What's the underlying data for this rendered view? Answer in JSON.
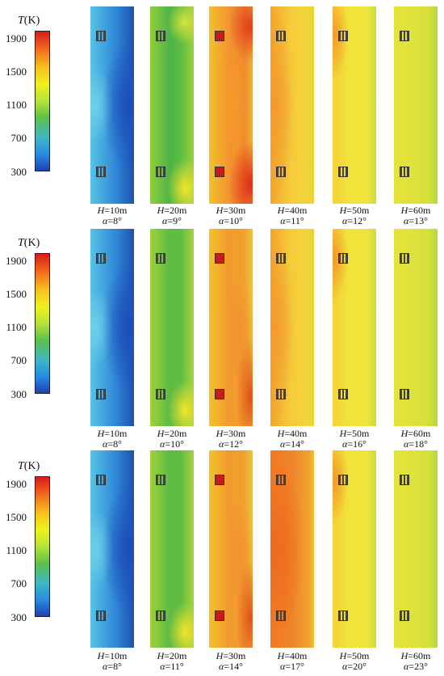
{
  "colorbar": {
    "title_var": "T",
    "title_unit": "(K)",
    "ticks": [
      "1900",
      "1500",
      "1100",
      "700",
      "300"
    ]
  },
  "rows": [
    {
      "captions": [
        {
          "h": "H",
          "h_val": "=10m",
          "a": "α",
          "a_val": "=8°"
        },
        {
          "h": "H",
          "h_val": "=20m",
          "a": "α",
          "a_val": "=9°"
        },
        {
          "h": "H",
          "h_val": "=30m",
          "a": "α",
          "a_val": "=10°"
        },
        {
          "h": "H",
          "h_val": "=40m",
          "a": "α",
          "a_val": "=11°"
        },
        {
          "h": "H",
          "h_val": "=50m",
          "a": "α",
          "a_val": "=12°"
        },
        {
          "h": "H",
          "h_val": "=60m",
          "a": "α",
          "a_val": "=13°"
        }
      ]
    },
    {
      "captions": [
        {
          "h": "H",
          "h_val": "=10m",
          "a": "α",
          "a_val": "=8°"
        },
        {
          "h": "H",
          "h_val": "=20m",
          "a": "α",
          "a_val": "=10°"
        },
        {
          "h": "H",
          "h_val": "=30m",
          "a": "α",
          "a_val": "=12°"
        },
        {
          "h": "H",
          "h_val": "=40m",
          "a": "α",
          "a_val": "=14°"
        },
        {
          "h": "H",
          "h_val": "=50m",
          "a": "α",
          "a_val": "=16°"
        },
        {
          "h": "H",
          "h_val": "=60m",
          "a": "α",
          "a_val": "=18°"
        }
      ]
    },
    {
      "captions": [
        {
          "h": "H",
          "h_val": "=10m",
          "a": "α",
          "a_val": "=8°"
        },
        {
          "h": "H",
          "h_val": "=20m",
          "a": "α",
          "a_val": "=11°"
        },
        {
          "h": "H",
          "h_val": "=30m",
          "a": "α",
          "a_val": "=14°"
        },
        {
          "h": "H",
          "h_val": "=40m",
          "a": "α",
          "a_val": "=17°"
        },
        {
          "h": "H",
          "h_val": "=50m",
          "a": "α",
          "a_val": "=20°"
        },
        {
          "h": "H",
          "h_val": "=60m",
          "a": "α",
          "a_val": "=23°"
        }
      ]
    }
  ],
  "colors": {
    "max": "#d91a1a",
    "mid": "#5fbf4c",
    "min": "#1e40b6"
  }
}
